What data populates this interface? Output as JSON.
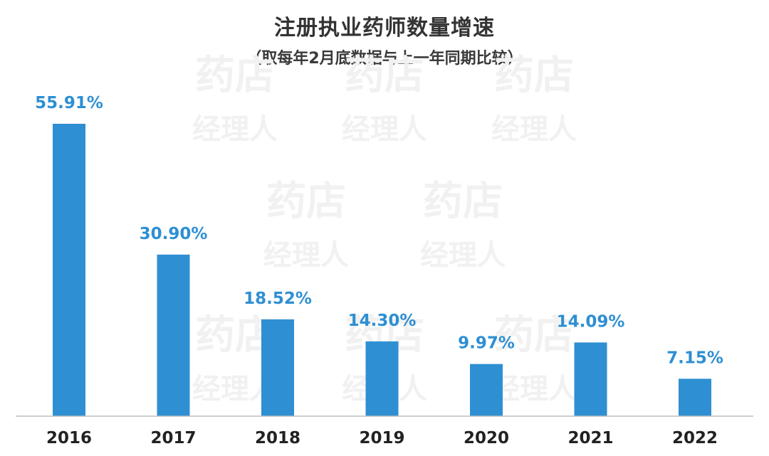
{
  "chart_data": {
    "type": "bar",
    "title": "注册执业药师数量增速",
    "subtitle": "（取每年2月底数据与上一年同期比较）",
    "categories": [
      "2016",
      "2017",
      "2018",
      "2019",
      "2020",
      "2021",
      "2022"
    ],
    "values": [
      55.91,
      30.9,
      18.52,
      14.3,
      9.97,
      14.09,
      7.15
    ],
    "value_labels": [
      "55.91%",
      "30.90%",
      "18.52%",
      "14.30%",
      "9.97%",
      "14.09%",
      "7.15%"
    ],
    "xlabel": "",
    "ylabel": "",
    "ylim": [
      0,
      60
    ],
    "grid": false,
    "bar_color": "#2e8fd3",
    "label_color": "#2e8fd3"
  },
  "watermark": {
    "line1": "药店",
    "line2": "经理人"
  }
}
